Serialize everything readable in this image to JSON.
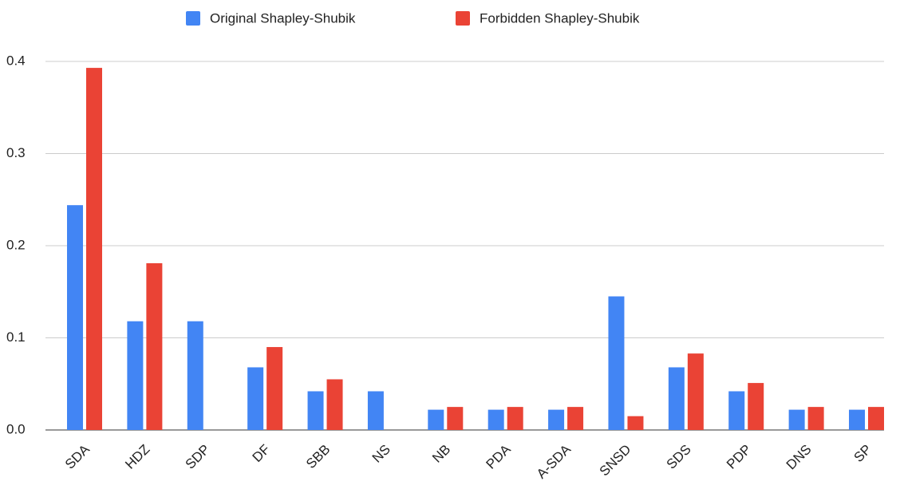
{
  "chart_data": {
    "type": "bar",
    "categories": [
      "SDA",
      "HDZ",
      "SDP",
      "DF",
      "SBB",
      "NS",
      "NB",
      "PDA",
      "A-SDA",
      "SNSD",
      "SDS",
      "PDP",
      "DNS",
      "SP"
    ],
    "series": [
      {
        "name": "Original Shapley-Shubik",
        "color": "#4285f4",
        "values": [
          0.244,
          0.118,
          0.118,
          0.068,
          0.042,
          0.042,
          0.022,
          0.022,
          0.022,
          0.145,
          0.068,
          0.042,
          0.022,
          0.022
        ]
      },
      {
        "name": "Forbidden Shapley-Shubik",
        "color": "#ea4335",
        "values": [
          0.393,
          0.181,
          0,
          0.09,
          0.055,
          0,
          0.025,
          0.025,
          0.025,
          0.015,
          0.083,
          0.051,
          0.025,
          0.025
        ]
      }
    ],
    "ylim": [
      0,
      0.4
    ],
    "yticks": [
      {
        "value": 0,
        "label": "0.0"
      },
      0.1,
      0.2,
      0.3,
      0.4
    ],
    "grid": true,
    "legend": "top"
  }
}
